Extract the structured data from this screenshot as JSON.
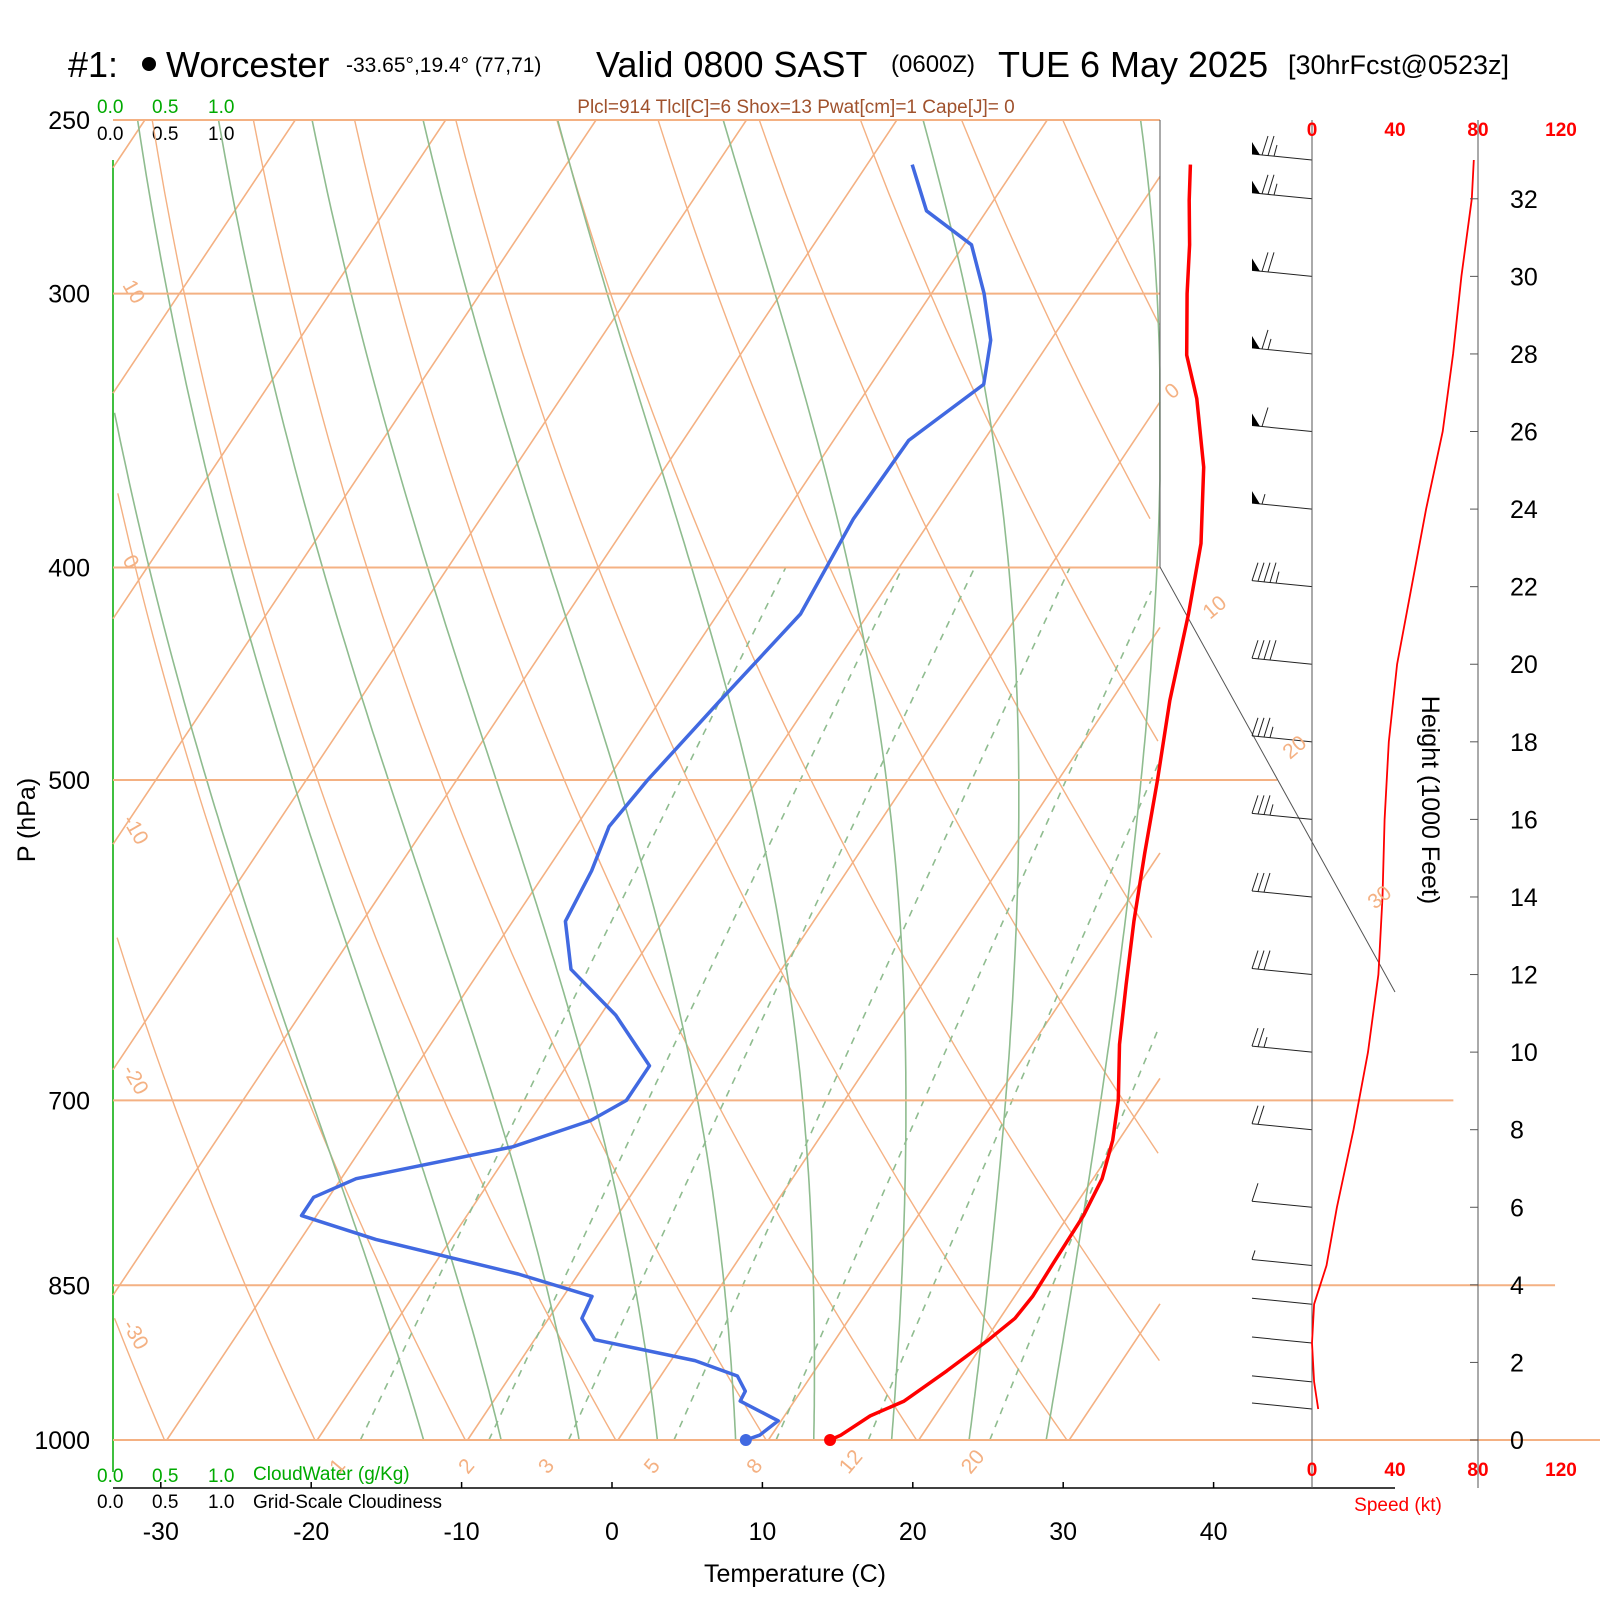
{
  "header": {
    "station_prefix": "#1:",
    "station_name": "Worcester",
    "station_coords": "-33.65°,19.4° (77,71)",
    "valid_label": "Valid 0800 SAST",
    "valid_zulu": "(0600Z)",
    "valid_date": "TUE 6 May 2025",
    "forecast": "[30hrFcst@0523z]"
  },
  "indices": "Plcl=914 Tlcl[C]=6 Shox=13 Pwat[cm]=1 Cape[J]= 0",
  "cloud_scale": {
    "top_green": [
      "0.0",
      "0.5",
      "1.0"
    ],
    "top_black": [
      "0.0",
      "0.5",
      "1.0"
    ],
    "bottom_green": [
      "0.0",
      "0.5",
      "1.0"
    ],
    "bottom_black": [
      "0.0",
      "0.5",
      "1.0"
    ],
    "cloudwater_label": "CloudWater (g/Kg)",
    "cloudiness_label": "Grid-Scale Cloudiness"
  },
  "axes": {
    "y_label": "P (hPa)",
    "x_label": "Temperature (C)",
    "height_label": "Height (1000 Feet)",
    "speed_label": "Speed (kt)"
  },
  "colors": {
    "temperature": "#ff0000",
    "dewpoint": "#4169e1",
    "isotherm": "#f4b183",
    "moist_adiabat": "#8fbc8f",
    "mixing_ratio": "#8fbc8f",
    "cloud_green": "#00aa00",
    "indices": "#a0522d"
  },
  "chart_data": {
    "type": "skew-t",
    "pressure_levels": [
      250,
      300,
      400,
      500,
      700,
      850,
      1000
    ],
    "temperature_ticks": [
      -30,
      -20,
      -10,
      0,
      10,
      20,
      30,
      40
    ],
    "ylim_hpa": [
      1000,
      250
    ],
    "x_tick_labels": [
      "-30",
      "-20",
      "-10",
      "0",
      "10",
      "20",
      "30",
      "40"
    ],
    "y_tick_labels": [
      "250",
      "300",
      "400",
      "500",
      "700",
      "850",
      "1000"
    ],
    "mixing_ratio_labels": [
      "1",
      "2",
      "3",
      "5",
      "8",
      "12",
      "20"
    ],
    "dry_adiabat_labels": [
      "10",
      "0",
      "-10",
      "-20",
      "-30"
    ],
    "isotherm_labels_right": [
      "0",
      "10",
      "20",
      "30"
    ],
    "temperature_profile": [
      {
        "p": 1000,
        "t": 14.1
      },
      {
        "p": 995,
        "t": 14.6
      },
      {
        "p": 975,
        "t": 15.7
      },
      {
        "p": 960,
        "t": 17.3
      },
      {
        "p": 930,
        "t": 18.8
      },
      {
        "p": 900,
        "t": 20.2
      },
      {
        "p": 880,
        "t": 21.0
      },
      {
        "p": 860,
        "t": 21.2
      },
      {
        "p": 830,
        "t": 21.1
      },
      {
        "p": 790,
        "t": 21.0
      },
      {
        "p": 760,
        "t": 20.6
      },
      {
        "p": 730,
        "t": 19.6
      },
      {
        "p": 700,
        "t": 18.2
      },
      {
        "p": 660,
        "t": 15.8
      },
      {
        "p": 620,
        "t": 13.6
      },
      {
        "p": 580,
        "t": 11.3
      },
      {
        "p": 540,
        "t": 9.0
      },
      {
        "p": 500,
        "t": 6.6
      },
      {
        "p": 460,
        "t": 3.9
      },
      {
        "p": 420,
        "t": 1.3
      },
      {
        "p": 390,
        "t": -1.0
      },
      {
        "p": 360,
        "t": -4.2
      },
      {
        "p": 335,
        "t": -7.7
      },
      {
        "p": 320,
        "t": -10.3
      },
      {
        "p": 300,
        "t": -13.0
      },
      {
        "p": 285,
        "t": -15.0
      },
      {
        "p": 272,
        "t": -17.0
      },
      {
        "p": 262,
        "t": -18.5
      }
    ],
    "dewpoint_profile": [
      {
        "p": 1000,
        "t": 8.5
      },
      {
        "p": 995,
        "t": 9.2
      },
      {
        "p": 980,
        "t": 9.8
      },
      {
        "p": 960,
        "t": 6.4
      },
      {
        "p": 950,
        "t": 6.3
      },
      {
        "p": 935,
        "t": 5.1
      },
      {
        "p": 920,
        "t": 1.6
      },
      {
        "p": 900,
        "t": -6.0
      },
      {
        "p": 880,
        "t": -7.8
      },
      {
        "p": 860,
        "t": -8.1
      },
      {
        "p": 840,
        "t": -14.0
      },
      {
        "p": 810,
        "t": -25.0
      },
      {
        "p": 790,
        "t": -31.0
      },
      {
        "p": 775,
        "t": -31.0
      },
      {
        "p": 760,
        "t": -29.0
      },
      {
        "p": 735,
        "t": -20.0
      },
      {
        "p": 715,
        "t": -16.0
      },
      {
        "p": 700,
        "t": -14.5
      },
      {
        "p": 675,
        "t": -14.5
      },
      {
        "p": 640,
        "t": -19.0
      },
      {
        "p": 610,
        "t": -24.0
      },
      {
        "p": 580,
        "t": -26.5
      },
      {
        "p": 550,
        "t": -27.0
      },
      {
        "p": 525,
        "t": -27.8
      },
      {
        "p": 500,
        "t": -27.3
      },
      {
        "p": 460,
        "t": -26.0
      },
      {
        "p": 420,
        "t": -24.5
      },
      {
        "p": 380,
        "t": -25.2
      },
      {
        "p": 350,
        "t": -25.0
      },
      {
        "p": 330,
        "t": -22.5
      },
      {
        "p": 315,
        "t": -24.0
      },
      {
        "p": 300,
        "t": -26.5
      },
      {
        "p": 285,
        "t": -29.5
      },
      {
        "p": 275,
        "t": -34.0
      },
      {
        "p": 262,
        "t": -37.0
      }
    ],
    "height_axis_kft": {
      "ticks": [
        0,
        2,
        4,
        6,
        8,
        10,
        12,
        14,
        16,
        18,
        20,
        22,
        24,
        26,
        28,
        30,
        32
      ],
      "range": [
        0,
        33
      ]
    },
    "speed_axis_kt": {
      "ticks": [
        0,
        40,
        80,
        120
      ],
      "range": [
        0,
        80
      ]
    },
    "wind_speed_profile": [
      {
        "kft": 0.8,
        "kt": 3
      },
      {
        "kft": 1.5,
        "kt": 1
      },
      {
        "kft": 2.5,
        "kt": 0
      },
      {
        "kft": 3.5,
        "kt": 1
      },
      {
        "kft": 4.5,
        "kt": 7
      },
      {
        "kft": 6.0,
        "kt": 12
      },
      {
        "kft": 8.0,
        "kt": 20
      },
      {
        "kft": 10.0,
        "kt": 27
      },
      {
        "kft": 12.0,
        "kt": 32
      },
      {
        "kft": 14.0,
        "kt": 34
      },
      {
        "kft": 16.0,
        "kt": 35
      },
      {
        "kft": 18.0,
        "kt": 37
      },
      {
        "kft": 20.0,
        "kt": 41
      },
      {
        "kft": 22.0,
        "kt": 48
      },
      {
        "kft": 24.0,
        "kt": 55
      },
      {
        "kft": 26.0,
        "kt": 63
      },
      {
        "kft": 28.0,
        "kt": 68
      },
      {
        "kft": 30.0,
        "kt": 72
      },
      {
        "kft": 32.0,
        "kt": 77
      },
      {
        "kft": 33.0,
        "kt": 78
      }
    ]
  }
}
